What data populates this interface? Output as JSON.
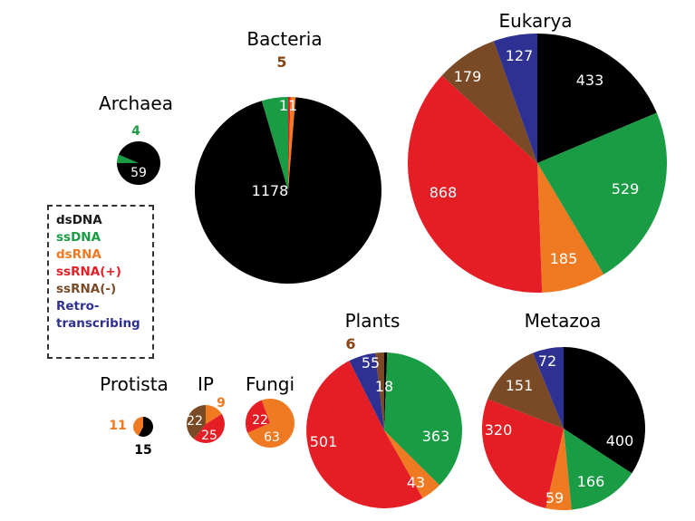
{
  "chart_data": {
    "type": "pie",
    "categories": [
      "dsDNA",
      "ssDNA",
      "dsRNA",
      "ssRNA(+)",
      "ssRNA(-)",
      "Retro-transcribing"
    ],
    "colors": {
      "dsDNA": "#000000",
      "ssDNA": "#1a9c45",
      "dsRNA": "#f07a22",
      "ssRNA(+)": "#e51e25",
      "ssRNA(-)": "#7a4a26",
      "Retro-transcribing": "#2e3192"
    },
    "legend": {
      "placement": "middle-left",
      "items": [
        {
          "label": "dsDNA",
          "key": "dsDNA",
          "color": "#1a1a1a"
        },
        {
          "label": "ssDNA",
          "key": "ssDNA",
          "color": "#1a9c45"
        },
        {
          "label": "dsRNA",
          "key": "dsRNA",
          "color": "#f07a22"
        },
        {
          "label": "ssRNA(+)",
          "key": "ssRNA(+)",
          "color": "#e51e25"
        },
        {
          "label": "ssRNA(-)",
          "key": "ssRNA(-)",
          "color": "#7a4a26"
        },
        {
          "label": "Retro-",
          "label2": "transcribing",
          "key": "Retro-transcribing",
          "color": "#2e3192"
        }
      ]
    },
    "pies": [
      {
        "title": "Archaea",
        "slices": [
          {
            "category": "ssDNA",
            "value": 4,
            "label": "4"
          },
          {
            "category": "dsDNA",
            "value": 59,
            "label": "59"
          }
        ]
      },
      {
        "title": "Bacteria",
        "slices": [
          {
            "category": "ssRNA(+)",
            "value": 5,
            "label": "5"
          },
          {
            "category": "dsRNA",
            "value": 11,
            "label": "11"
          },
          {
            "category": "dsDNA",
            "value": 1178,
            "label": "1178"
          },
          {
            "category": "ssDNA",
            "value": 57,
            "label": "57"
          }
        ]
      },
      {
        "title": "Eukarya",
        "slices": [
          {
            "category": "dsDNA",
            "value": 433,
            "label": "433"
          },
          {
            "category": "ssDNA",
            "value": 529,
            "label": "529"
          },
          {
            "category": "dsRNA",
            "value": 185,
            "label": "185"
          },
          {
            "category": "ssRNA(+)",
            "value": 868,
            "label": "868"
          },
          {
            "category": "ssRNA(-)",
            "value": 179,
            "label": "179"
          },
          {
            "category": "Retro-transcribing",
            "value": 127,
            "label": "127"
          }
        ]
      },
      {
        "title": "Protista",
        "slices": [
          {
            "category": "dsDNA",
            "value": 15,
            "label": "15"
          },
          {
            "category": "dsRNA",
            "value": 11,
            "label": "11"
          }
        ]
      },
      {
        "title": "IP",
        "slices": [
          {
            "category": "dsRNA",
            "value": 9,
            "label": "9"
          },
          {
            "category": "ssRNA(+)",
            "value": 25,
            "label": "25"
          },
          {
            "category": "ssRNA(-)",
            "value": 22,
            "label": "22"
          }
        ]
      },
      {
        "title": "Fungi",
        "slices": [
          {
            "category": "dsRNA",
            "value": 63,
            "label": "63"
          },
          {
            "category": "ssRNA(+)",
            "value": 22,
            "label": "22"
          }
        ]
      },
      {
        "title": "Plants",
        "slices": [
          {
            "category": "dsDNA",
            "value": 6,
            "label": "6"
          },
          {
            "category": "ssDNA",
            "value": 363,
            "label": "363"
          },
          {
            "category": "dsRNA",
            "value": 43,
            "label": "43"
          },
          {
            "category": "ssRNA(+)",
            "value": 501,
            "label": "501"
          },
          {
            "category": "Retro-transcribing",
            "value": 55,
            "label": "55"
          },
          {
            "category": "ssRNA(-)",
            "value": 18,
            "label": "18"
          }
        ]
      },
      {
        "title": "Metazoa",
        "slices": [
          {
            "category": "dsDNA",
            "value": 400,
            "label": "400"
          },
          {
            "category": "ssDNA",
            "value": 166,
            "label": "166"
          },
          {
            "category": "dsRNA",
            "value": 59,
            "label": "59"
          },
          {
            "category": "ssRNA(+)",
            "value": 320,
            "label": "320"
          },
          {
            "category": "ssRNA(-)",
            "value": 151,
            "label": "151"
          },
          {
            "category": "Retro-transcribing",
            "value": 72,
            "label": "72"
          }
        ]
      }
    ]
  }
}
